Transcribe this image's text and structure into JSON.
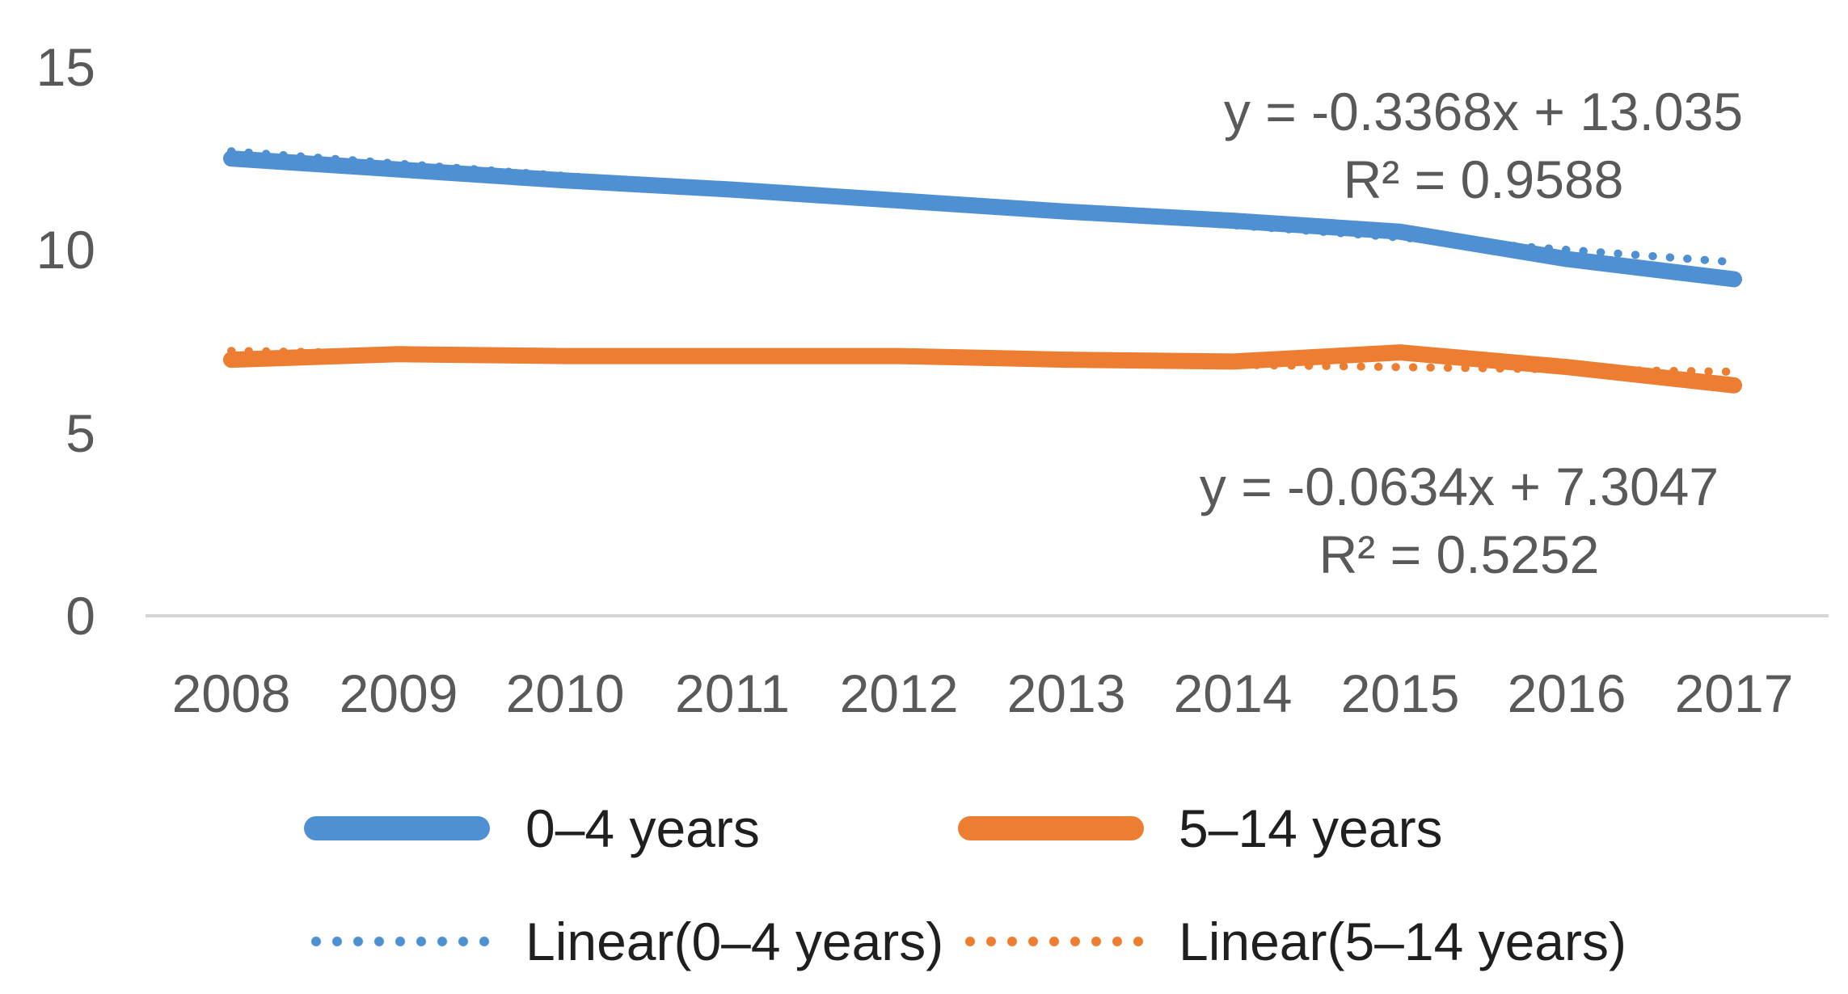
{
  "chart_data": {
    "type": "line",
    "title": "",
    "x": [
      "2008",
      "2009",
      "2010",
      "2011",
      "2012",
      "2013",
      "2014",
      "2015",
      "2016",
      "2017"
    ],
    "yticks": [
      0,
      5,
      10,
      15
    ],
    "ylim": [
      0,
      15
    ],
    "grid": false,
    "legend_position": "bottom",
    "axis_color": "#D6D6D6",
    "text_color": "#595959",
    "series": [
      {
        "name": "0–4 years",
        "color": "#4E90D1",
        "style": "solid",
        "values": [
          12.5,
          12.2,
          11.9,
          11.65,
          11.35,
          11.05,
          10.8,
          10.5,
          9.75,
          9.2
        ]
      },
      {
        "name": "5–14 years",
        "color": "#ED7D31",
        "style": "solid",
        "values": [
          7.0,
          7.15,
          7.1,
          7.1,
          7.1,
          7.0,
          6.95,
          7.2,
          6.8,
          6.3
        ]
      }
    ],
    "trendlines": [
      {
        "name": "Linear(0–4 years)",
        "color": "#4E90D1",
        "style": "dotted",
        "slope": -0.3368,
        "intercept": 13.035,
        "equation": "y = -0.3368x + 13.035",
        "r_squared": "R² = 0.9588"
      },
      {
        "name": "Linear(5–14 years)",
        "color": "#ED7D31",
        "style": "dotted",
        "slope": -0.0634,
        "intercept": 7.3047,
        "equation": "y = -0.0634x + 7.3047",
        "r_squared": "R² = 0.5252"
      }
    ]
  },
  "legend": {
    "items": [
      {
        "label": "0–4 years",
        "swatch": "solid-blue"
      },
      {
        "label": "5–14 years",
        "swatch": "solid-orange"
      },
      {
        "label": "Linear(0–4 years)",
        "swatch": "dotted-blue"
      },
      {
        "label": "Linear(5–14 years)",
        "swatch": "dotted-orange"
      }
    ]
  }
}
